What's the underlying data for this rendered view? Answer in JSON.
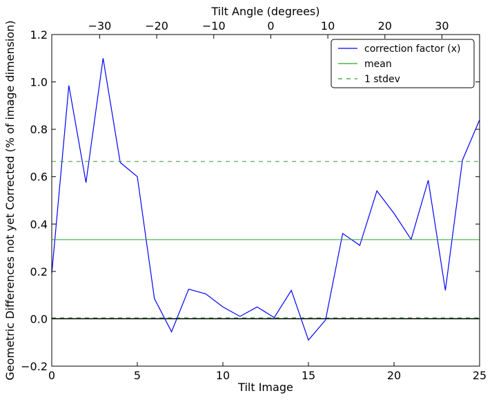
{
  "chart_data": {
    "type": "line",
    "xlabel": "Tilt Image",
    "ylabel": "Geometric Differences not yet Corrected (% of image dimension)",
    "x2label": "Tilt Angle (degrees)",
    "xlim": [
      0,
      25
    ],
    "ylim": [
      -0.2,
      1.2
    ],
    "x2lim": [
      -38.4,
      36.6
    ],
    "xticks": [
      0,
      5,
      10,
      15,
      20,
      25
    ],
    "yticks": [
      -0.2,
      0.0,
      0.2,
      0.4,
      0.6,
      0.8,
      1.0,
      1.2
    ],
    "ytick_labels": [
      "−0.2",
      "0.0",
      "0.2",
      "0.4",
      "0.6",
      "0.8",
      "1.0",
      "1.2"
    ],
    "x2ticks": [
      -30,
      -20,
      -10,
      0,
      10,
      20,
      30
    ],
    "x2tick_labels": [
      "−30",
      "−20",
      "−10",
      "0",
      "10",
      "20",
      "30"
    ],
    "grid": false,
    "legend_position": "top-right",
    "series": [
      {
        "name": "correction factor (x)",
        "color": "#0000ff",
        "style": "solid",
        "x": [
          0,
          1,
          2,
          3,
          4,
          5,
          6,
          7,
          8,
          9,
          10,
          11,
          12,
          13,
          14,
          15,
          16,
          17,
          18,
          19,
          20,
          21,
          22,
          23,
          24,
          25
        ],
        "y": [
          0.19,
          0.985,
          0.575,
          1.1,
          0.66,
          0.6,
          0.085,
          -0.055,
          0.125,
          0.105,
          0.05,
          0.01,
          0.05,
          0.005,
          0.12,
          -0.09,
          -0.005,
          0.36,
          0.31,
          0.54,
          0.445,
          0.335,
          0.585,
          0.12,
          0.67,
          0.84
        ]
      },
      {
        "name": "mean",
        "color": "#2ca02c",
        "style": "solid",
        "y": 0.334
      },
      {
        "name": "1 stdev",
        "color": "#2ca02c",
        "style": "dashed",
        "y": [
          0.004,
          0.664
        ]
      }
    ],
    "baseline": {
      "y": 0.0,
      "color": "#000000"
    }
  }
}
